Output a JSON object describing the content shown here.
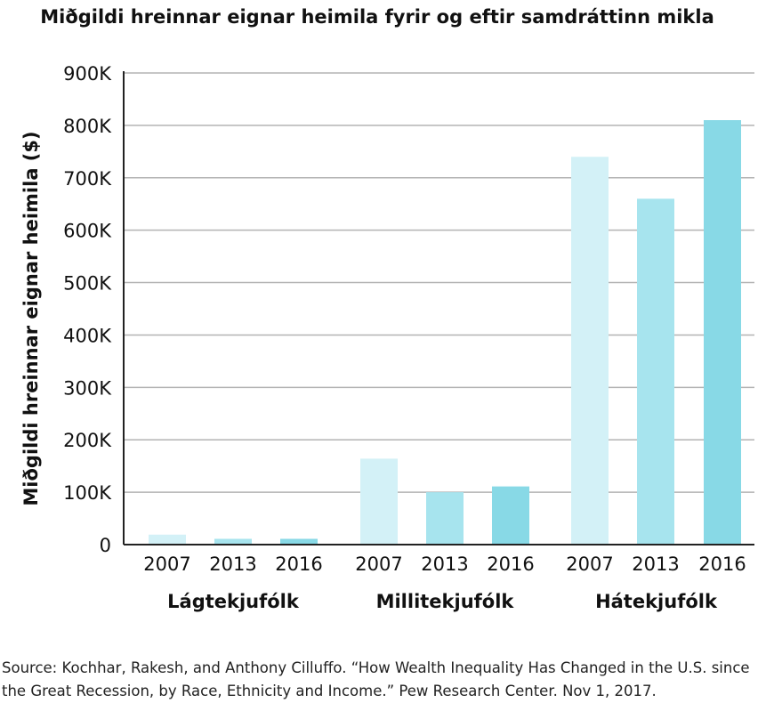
{
  "chart_data": {
    "type": "bar",
    "title": "Miðgildi hreinnar eignar heimila fyrir og eftir samdráttinn mikla",
    "ylabel": "Miðgildi hreinnar eignar heimila ($)",
    "xlabel": "",
    "ylim": [
      0,
      900000
    ],
    "yticks": [
      0,
      100000,
      200000,
      300000,
      400000,
      500000,
      600000,
      700000,
      800000,
      900000
    ],
    "ytick_labels": [
      "0",
      "100K",
      "200K",
      "300K",
      "400K",
      "500K",
      "600K",
      "700K",
      "800K",
      "900K"
    ],
    "grid": true,
    "groups": [
      {
        "label": "Lágtekjufólk",
        "bars": [
          {
            "year": "2007",
            "value": 19000
          },
          {
            "year": "2013",
            "value": 11000
          },
          {
            "year": "2016",
            "value": 11000
          }
        ]
      },
      {
        "label": "Millitekjufólk",
        "bars": [
          {
            "year": "2007",
            "value": 164000
          },
          {
            "year": "2013",
            "value": 100000
          },
          {
            "year": "2016",
            "value": 111000
          }
        ]
      },
      {
        "label": "Hátekjufólk",
        "bars": [
          {
            "year": "2007",
            "value": 740000
          },
          {
            "year": "2013",
            "value": 660000
          },
          {
            "year": "2016",
            "value": 810000
          }
        ]
      }
    ],
    "colors": {
      "2007": "#d3f1f7",
      "2013": "#a7e4ee",
      "2016": "#88d9e6",
      "grid": "#b3b3b3",
      "axis": "#222222"
    }
  },
  "source": "Source: Kochhar, Rakesh, and Anthony Cilluffo. “How Wealth Inequality Has Changed in the U.S. since the Great Recession, by Race, Ethnicity and Income.” Pew Research Center. Nov 1, 2017."
}
